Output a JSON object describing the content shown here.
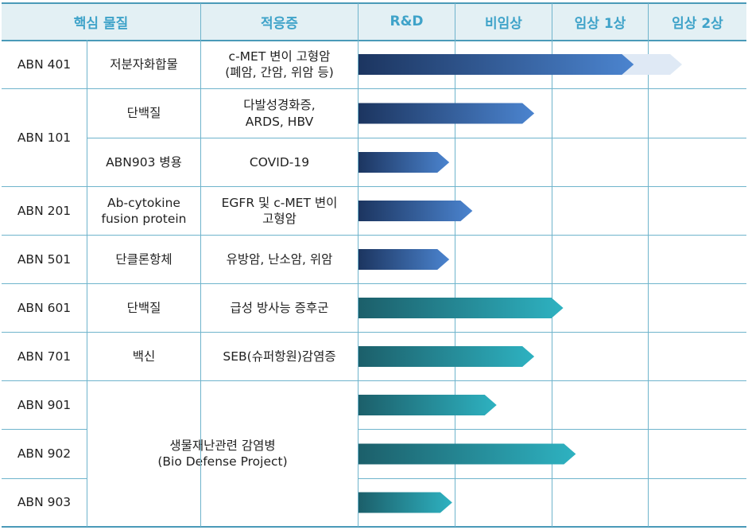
{
  "header": {
    "col_substance": "핵심 물질",
    "col_indication": "적응증"
  },
  "chart_data": {
    "type": "bar",
    "categories": [
      "R&D",
      "비임상",
      "임상 1상",
      "임상 2상"
    ],
    "note_units": "progress measured in stage units (1 = one full stage column)",
    "rows": [
      {
        "code": "ABN 401",
        "substance": "저분자화합물",
        "indication": "c-MET 변이 고형암\n(폐암, 간암, 위암 등)",
        "progress": 2.85,
        "planned": 3.35,
        "color": "blue"
      },
      {
        "code": "ABN 101",
        "substance": "단백질",
        "indication": "다발성경화증,\nARDS, HBV",
        "progress": 1.82,
        "color": "blue"
      },
      {
        "code": "",
        "substance": "ABN903 병용",
        "indication": "COVID-19",
        "progress": 0.94,
        "color": "blue"
      },
      {
        "code": "ABN 201",
        "substance": "Ab-cytokine\nfusion protein",
        "indication": "EGFR 및 c-MET 변이\n고형암",
        "progress": 1.18,
        "color": "blue"
      },
      {
        "code": "ABN 501",
        "substance": "단클론항체",
        "indication": "유방암, 난소암, 위암",
        "progress": 0.94,
        "color": "blue"
      },
      {
        "code": "ABN 601",
        "substance": "단백질",
        "indication": "급성 방사능 증후군",
        "progress": 2.12,
        "color": "teal"
      },
      {
        "code": "ABN 701",
        "substance": "백신",
        "indication": "SEB(슈퍼항원)감염증",
        "progress": 1.82,
        "color": "teal"
      },
      {
        "code": "ABN 901",
        "substance": "",
        "indication": "",
        "progress": 1.43,
        "color": "teal"
      },
      {
        "code": "ABN 902",
        "substance": "",
        "indication": "",
        "progress": 2.25,
        "color": "teal"
      },
      {
        "code": "ABN 903",
        "substance": "",
        "indication": "",
        "progress": 0.97,
        "color": "teal"
      }
    ],
    "merged": {
      "code_abn101": "ABN 101",
      "group_label": "생물재난관련 감염병\n(Bio Defense Project)"
    },
    "colors": {
      "blue_start": "#1c3560",
      "blue_end": "#4b84cf",
      "teal_start": "#1c5f6a",
      "teal_end": "#2eb2c1",
      "planned": "#dfe9f5",
      "header_bg": "#e3f0f4",
      "header_text": "#3fa3c9",
      "grid": "#6fb4cc"
    }
  }
}
